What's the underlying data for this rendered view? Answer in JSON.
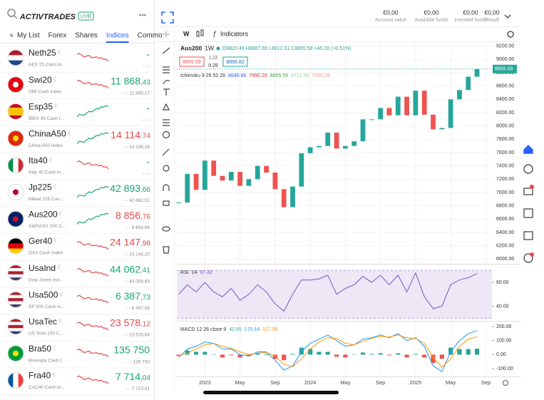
{
  "header": {
    "logo": "ACTIVTRADES",
    "badge": "LIVE",
    "menu": "•••"
  },
  "tabs": [
    "My List",
    "Forex",
    "Shares",
    "Indices",
    "Commo"
  ],
  "active_tab": 3,
  "instruments": [
    {
      "name": "Neth25",
      "desc": "AEX 25 Cash In...",
      "price": "-",
      "sub": "- ◦ -",
      "price_color": "#1aa37a",
      "trend": "#e5484d",
      "flag": [
        "#ae1c28",
        "#ffffff",
        "#21468b"
      ],
      "flag_dir": "h"
    },
    {
      "name": "Swi20",
      "desc": "SMI Cash Index",
      "price": "11 868",
      "decimals": ",43",
      "sub": "- ◦ 11 865,17",
      "price_color": "#1aa37a",
      "trend": "#e5484d",
      "flag": [
        "#e30613"
      ],
      "flag_dir": "h",
      "dot": "#ffffff"
    },
    {
      "name": "Esp35",
      "desc": "IBEX 35 Cash I...",
      "price": "-",
      "sub": "- ◦ -",
      "price_color": "#1aa37a",
      "trend": "#1aa37a",
      "flag": [
        "#c60b1e",
        "#ffc400",
        "#ffc400",
        "#c60b1e"
      ],
      "flag_dir": "h"
    },
    {
      "name": "ChinaA50",
      "desc": "China A50 Index",
      "price": "14 114",
      "decimals": ",74",
      "sub": "- ◦ 14 106,28",
      "price_color": "#e5484d",
      "trend": "#1aa37a",
      "flag": [
        "#de2910"
      ],
      "flag_dir": "h",
      "dot": "#ffde00"
    },
    {
      "name": "Ita40",
      "desc": "Italy 40 Cash In...",
      "price": "-",
      "sub": "- ◦ -",
      "price_color": "#1aa37a",
      "trend": "#e5484d",
      "flag": [
        "#009246",
        "#ffffff",
        "#ce2b37"
      ],
      "flag_dir": "v"
    },
    {
      "name": "Jp225",
      "desc": "Nikkei 225 Cas...",
      "price": "42 893",
      "decimals": ",66",
      "sub": "- ◦ 42 882,51",
      "price_color": "#1aa37a",
      "trend": "#1aa37a",
      "flag": [
        "#ffffff"
      ],
      "flag_dir": "h",
      "dot": "#bc002d"
    },
    {
      "name": "Aus200",
      "desc": "S&P/ASX 200 C...",
      "price": "8 856",
      "decimals": ",76",
      "sub": "- ◦ 8 854,64",
      "price_color": "#e5484d",
      "trend": "#1aa37a",
      "flag": [
        "#012169"
      ],
      "flag_dir": "h",
      "dot": "#c8102e"
    },
    {
      "name": "Ger40",
      "desc": "DAX Cash Index",
      "price": "24 147",
      "decimals": ",98",
      "sub": "- ◦ 24 144,20",
      "price_color": "#e5484d",
      "trend": "#e5484d",
      "flag": [
        "#000000",
        "#dd0000",
        "#ffce00"
      ],
      "flag_dir": "h"
    },
    {
      "name": "UsaInd",
      "desc": "Dow Jones Ind...",
      "price": "44 062",
      "decimals": ",41",
      "sub": "- ◦ 44 056,83",
      "price_color": "#1aa37a",
      "trend": "#e5484d",
      "flag": [
        "#b22234",
        "#ffffff",
        "#b22234",
        "#ffffff",
        "#3c3b6e"
      ],
      "flag_dir": "h"
    },
    {
      "name": "Usa500",
      "desc": "SP 500 Cash In...",
      "price": "6 387",
      "decimals": ",73",
      "sub": "- ◦ 6 387,06",
      "price_color": "#1aa37a",
      "trend": "#e5484d",
      "flag": [
        "#b22234",
        "#ffffff",
        "#b22234",
        "#ffffff",
        "#3c3b6e"
      ],
      "flag_dir": "h"
    },
    {
      "name": "UsaTec",
      "desc": "US Tech 100 C...",
      "price": "23 578",
      "decimals": ",12",
      "sub": "- ◦ 23 576,64",
      "price_color": "#e5484d",
      "trend": "#e5484d",
      "flag": [
        "#b22234",
        "#ffffff",
        "#b22234",
        "#ffffff",
        "#3c3b6e"
      ],
      "flag_dir": "h"
    },
    {
      "name": "Bra50",
      "desc": "Bovespa Cash I...",
      "price": "135 750",
      "sub": "- ◦ 135 730",
      "price_color": "#1aa37a",
      "trend": "#e5484d",
      "flag": [
        "#009c3b"
      ],
      "flag_dir": "h",
      "dot": "#ffdf00"
    },
    {
      "name": "Fra40",
      "desc": "CAC40 Cash In...",
      "price": "7 714",
      "decimals": ",04",
      "sub": "- ◦ 7 710,91",
      "price_color": "#1aa37a",
      "trend": "#e5484d",
      "flag": [
        "#0055a4",
        "#ffffff",
        "#ef4135"
      ],
      "flag_dir": "v"
    }
  ],
  "account": [
    {
      "value": "€0,00",
      "label": "Account value"
    },
    {
      "value": "€0,00",
      "label": "Available funds"
    },
    {
      "value": "€0,00",
      "label": "Invested funds"
    },
    {
      "value": "€0,00",
      "label": "Result"
    }
  ],
  "toolbar": {
    "interval": "W",
    "indicators": "Indicators"
  },
  "chart_data": {
    "type": "candlestick",
    "symbol": "Aus200",
    "interval": "1W",
    "ohlc_text": "O8820.49 H8867.65 L8812.51 C8855.59 +45.28 (+0.51%)",
    "bid": "8855.59",
    "spread": "1.23",
    "step": "0.25",
    "ask": "8856.82",
    "ichimoku": "Ichimoku 9 26 52 26",
    "ichimoku_values": [
      "8646.86",
      "7990.29",
      "8855.59",
      "8318.58",
      "7990.29"
    ],
    "ichimoku_colors": [
      "#2962ff",
      "#d32f2f",
      "#43a047",
      "#a5d6a7",
      "#ef9a9a"
    ],
    "up_color": "#26a69a",
    "down_color": "#ef5350",
    "close": [
      6850,
      7280,
      7040,
      7480,
      7250,
      7180,
      7310,
      7100,
      7200,
      7400,
      7300,
      7050,
      6780,
      7090,
      7590,
      7680,
      7700,
      7900,
      7660,
      7700,
      7770,
      8100,
      8100,
      8270,
      8160,
      8440,
      8160,
      8530,
      8170,
      7950,
      7970,
      8400,
      8540,
      8740,
      8855.59
    ],
    "last_price": {
      "value": 8855.59,
      "label": "8855.59"
    },
    "xlim": [
      -0.2,
      35.7
    ],
    "xticks": [
      {
        "value": 3,
        "label": "2023"
      },
      {
        "value": 7,
        "label": "May"
      },
      {
        "value": 11,
        "label": "Sep"
      },
      {
        "value": 15,
        "label": "2024"
      },
      {
        "value": 19,
        "label": "May"
      },
      {
        "value": 23,
        "label": "Sep"
      },
      {
        "value": 27,
        "label": "2025"
      },
      {
        "value": 31,
        "label": "May"
      },
      {
        "value": 35,
        "label": "Sep"
      }
    ],
    "ylim": [
      5950,
      9250
    ],
    "yticks": [
      {
        "value": 6000,
        "label": "6000.00"
      },
      {
        "value": 6200,
        "label": "6200.00"
      },
      {
        "value": 6400,
        "label": "6400.00"
      },
      {
        "value": 6600,
        "label": "6600.00"
      },
      {
        "value": 6800,
        "label": "6800.00"
      },
      {
        "value": 7000,
        "label": "7000.00"
      },
      {
        "value": 7200,
        "label": "7200.00"
      },
      {
        "value": 7400,
        "label": "7400.00"
      },
      {
        "value": 7600,
        "label": "7600.00"
      },
      {
        "value": 7800,
        "label": "7800.00"
      },
      {
        "value": 8000,
        "label": "8000.00"
      },
      {
        "value": 8200,
        "label": "8200.00"
      },
      {
        "value": 8400,
        "label": "8400.00"
      },
      {
        "value": 8600,
        "label": "8600.00"
      },
      {
        "value": 8800,
        "label": "8800.00"
      },
      {
        "value": 9000,
        "label": "9000.00"
      },
      {
        "value": 9200,
        "label": "9200.00"
      }
    ],
    "grid": true,
    "rsi": {
      "title": "RSI",
      "period": "14",
      "last": "67.42",
      "color": "#7e57c2",
      "band": [
        30,
        70
      ],
      "values": [
        50,
        58,
        52,
        60,
        52,
        48,
        55,
        45,
        50,
        58,
        52,
        42,
        36,
        50,
        62,
        62,
        63,
        66,
        50,
        55,
        58,
        65,
        60,
        66,
        58,
        66,
        52,
        68,
        48,
        38,
        40,
        58,
        62,
        64,
        67.42
      ],
      "ylim": [
        29,
        72
      ],
      "yticks": [
        {
          "value": 60,
          "label": "60.00"
        },
        {
          "value": 40,
          "label": "40.00"
        }
      ]
    },
    "macd": {
      "title": "MACD 12 26 close 9",
      "legend": [
        "42.55",
        "170.14",
        "127.59"
      ],
      "legend_colors": [
        "#26a69a",
        "#2196f3",
        "#ff9800"
      ],
      "hist": [
        -10,
        30,
        20,
        20,
        0,
        -20,
        -5,
        -20,
        -10,
        10,
        5,
        -30,
        -40,
        5,
        50,
        40,
        20,
        20,
        -15,
        -20,
        0,
        15,
        5,
        10,
        -5,
        10,
        -20,
        5,
        -20,
        -60,
        -30,
        50,
        40,
        40,
        42.55
      ],
      "macd": [
        -20,
        40,
        60,
        90,
        80,
        40,
        40,
        0,
        -10,
        20,
        20,
        -40,
        -110,
        -80,
        20,
        80,
        110,
        140,
        100,
        60,
        70,
        110,
        120,
        140,
        120,
        150,
        100,
        120,
        60,
        -80,
        -120,
        20,
        100,
        150,
        170.14
      ],
      "signal": [
        -10,
        10,
        40,
        70,
        80,
        60,
        45,
        20,
        0,
        10,
        15,
        -10,
        -70,
        -85,
        -30,
        40,
        90,
        120,
        115,
        80,
        70,
        95,
        115,
        130,
        125,
        140,
        120,
        115,
        80,
        -20,
        -90,
        -30,
        60,
        110,
        127.59
      ],
      "ylim": [
        -140,
        215
      ],
      "yticks": [
        {
          "value": 200,
          "label": "200.00"
        },
        {
          "value": 100,
          "label": "100.00"
        },
        {
          "value": 0,
          "label": "0.00"
        },
        {
          "value": -100,
          "label": "-100.00"
        }
      ]
    }
  }
}
